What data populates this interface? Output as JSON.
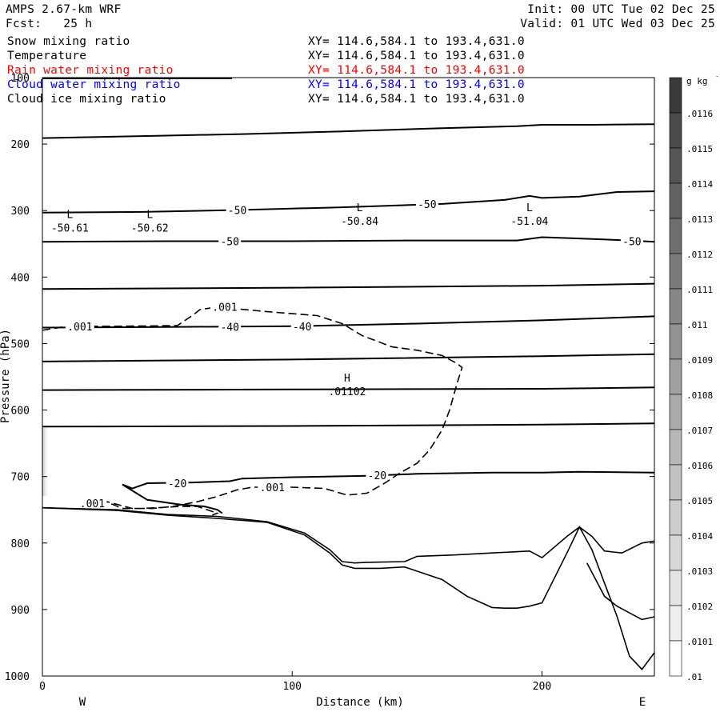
{
  "header": {
    "model": "AMPS 2.67-km WRF",
    "fcst_label": "Fcst:",
    "fcst_value": "25 h",
    "init": "Init: 00 UTC Tue 02 Dec 25",
    "valid": "Valid: 01 UTC Wed 03 Dec 25"
  },
  "fields": [
    {
      "name": "Snow mixing ratio",
      "xy": "XY= 114.6,584.1 to 193.4,631.0",
      "color": "#000000"
    },
    {
      "name": "Temperature",
      "xy": "XY= 114.6,584.1 to 193.4,631.0",
      "color": "#000000"
    },
    {
      "name": "Rain water mixing ratio",
      "xy": "XY= 114.6,584.1 to 193.4,631.0",
      "color": "#ff0000"
    },
    {
      "name": "Cloud water mixing ratio",
      "xy": "XY= 114.6,584.1 to 193.4,631.0",
      "color": "#0000ff"
    },
    {
      "name": "Cloud ice mixing ratio",
      "xy": "XY= 114.6,584.1 to 193.4,631.0",
      "color": "#000000"
    }
  ],
  "chart_data": {
    "type": "line",
    "xlabel": "Distance (km)",
    "ylabel": "Pressure (hPa)",
    "xlim": [
      0,
      245
    ],
    "ylim": [
      1000,
      100
    ],
    "xticks": [
      "0",
      "100",
      "200"
    ],
    "xtick_values": [
      0,
      100,
      200
    ],
    "yticks": [
      "100",
      "200",
      "300",
      "400",
      "500",
      "600",
      "700",
      "800",
      "900",
      "1000"
    ],
    "ytick_values": [
      100,
      200,
      300,
      400,
      500,
      600,
      700,
      800,
      900,
      1000
    ],
    "west_label": "W",
    "east_label": "E",
    "colorbar": {
      "unit": "g kg",
      "unit_exp": "-1",
      "labels": [
        ".0116",
        ".0115",
        ".0114",
        ".0113",
        ".0112",
        ".0111",
        ".011",
        ".0109",
        ".0108",
        ".0107",
        ".0106",
        ".0105",
        ".0104",
        ".0103",
        ".0102",
        ".0101",
        ".01"
      ],
      "colors": [
        "#3a3a3a",
        "#4a4a4a",
        "#555555",
        "#626262",
        "#6e6e6e",
        "#7a7a7a",
        "#878787",
        "#939393",
        "#a0a0a0",
        "#ababab",
        "#b7b7b7",
        "#c2c2c2",
        "#cdcdcd",
        "#d8d8d8",
        "#e3e3e3",
        "#efefef",
        "#ffffff"
      ]
    },
    "isotherms": [
      {
        "x": [
          0,
          40,
          80,
          120,
          160,
          190,
          200,
          220,
          245
        ],
        "y": [
          191,
          188,
          185,
          181,
          176,
          173,
          171,
          171,
          170
        ]
      },
      {
        "x": [
          0,
          40,
          80,
          120,
          160,
          185,
          195,
          200,
          215,
          230,
          245
        ],
        "y": [
          303,
          302,
          299,
          295,
          290,
          284,
          278,
          281,
          279,
          272,
          271
        ]
      },
      {
        "x": [
          0,
          50,
          100,
          150,
          190,
          200,
          215,
          235,
          245
        ],
        "y": [
          347,
          346,
          346,
          345,
          345,
          340,
          342,
          345,
          347
        ]
      },
      {
        "x": [
          0,
          100,
          200,
          245
        ],
        "y": [
          418,
          416,
          413,
          410
        ]
      },
      {
        "x": [
          0,
          50,
          100,
          150,
          200,
          245
        ],
        "y": [
          476,
          475,
          474,
          470,
          465,
          459
        ]
      },
      {
        "x": [
          0,
          100,
          200,
          245
        ],
        "y": [
          527,
          524,
          519,
          516
        ]
      },
      {
        "x": [
          0,
          100,
          200,
          245
        ],
        "y": [
          570,
          569,
          568,
          566
        ]
      },
      {
        "x": [
          0,
          100,
          200,
          245
        ],
        "y": [
          625,
          624,
          622,
          620
        ]
      },
      {
        "x": [
          32,
          36,
          42,
          60,
          75,
          80,
          100,
          130,
          150,
          180,
          200,
          215,
          245
        ],
        "y": [
          712,
          718,
          710,
          709,
          707,
          703,
          701,
          699,
          696,
          694,
          694,
          693,
          694
        ]
      },
      {
        "x": [
          32,
          42,
          55,
          65,
          70,
          72
        ],
        "y": [
          712,
          735,
          742,
          745,
          750,
          755
        ]
      }
    ],
    "snow_contour": {
      "x": [
        0,
        10,
        30,
        54,
        60,
        63,
        70,
        90,
        110,
        120,
        128,
        140,
        150,
        160,
        166,
        168,
        166,
        163,
        160,
        155,
        150,
        143,
        137,
        130,
        122,
        113,
        100,
        84,
        78,
        70,
        62,
        52,
        44,
        40,
        36,
        25,
        32,
        40,
        55,
        62,
        70,
        68
      ],
      "y": [
        480,
        474,
        474,
        473,
        458,
        449,
        445,
        452,
        458,
        470,
        488,
        505,
        510,
        518,
        530,
        536,
        560,
        600,
        630,
        660,
        680,
        695,
        710,
        725,
        728,
        718,
        716,
        716,
        720,
        730,
        738,
        745,
        748,
        748,
        748,
        737,
        748,
        748,
        745,
        745,
        755,
        758
      ]
    },
    "terrain_upper": {
      "x": [
        0,
        30,
        50,
        70,
        90,
        105,
        115,
        120,
        125,
        130,
        145,
        150,
        165,
        180,
        195,
        200,
        210,
        215,
        220,
        225,
        232,
        240,
        245
      ],
      "y": [
        747,
        750,
        757,
        760,
        768,
        785,
        810,
        828,
        830,
        829,
        828,
        820,
        818,
        815,
        812,
        822,
        790,
        776,
        790,
        812,
        815,
        800,
        797
      ]
    },
    "terrain_lower": {
      "x": [
        0,
        30,
        50,
        70,
        90,
        105,
        115,
        120,
        125,
        135,
        145,
        160,
        170,
        180,
        185,
        190,
        195,
        200,
        210,
        215,
        220,
        230,
        235,
        240,
        245
      ],
      "y": [
        747,
        751,
        758,
        763,
        769,
        788,
        815,
        833,
        838,
        838,
        836,
        855,
        880,
        897,
        898,
        898,
        895,
        890,
        815,
        776,
        810,
        910,
        970,
        990,
        965
      ]
    },
    "terrain_branch": {
      "x": [
        218,
        225,
        230,
        240,
        245
      ],
      "y": [
        830,
        880,
        895,
        915,
        911
      ]
    },
    "contour_labels": [
      {
        "text": "-50",
        "x": 78,
        "y": 299
      },
      {
        "text": "-50",
        "x": 154,
        "y": 290
      },
      {
        "text": "-50",
        "x": 75,
        "y": 346
      },
      {
        "text": "-50",
        "x": 236,
        "y": 346
      },
      {
        "text": "-40",
        "x": 75,
        "y": 475
      },
      {
        "text": "-40",
        "x": 104,
        "y": 474
      },
      {
        "text": "-20",
        "x": 54,
        "y": 710
      },
      {
        "text": "-20",
        "x": 134,
        "y": 698
      },
      {
        "text": ".001",
        "x": 15,
        "y": 474
      },
      {
        "text": ".001",
        "x": 73,
        "y": 445
      },
      {
        "text": ".001",
        "x": 92,
        "y": 716
      },
      {
        "text": ".001",
        "x": 20,
        "y": 740
      }
    ],
    "extrema": [
      {
        "mark": "L",
        "value": "-50.61",
        "x": 11,
        "y": 322
      },
      {
        "mark": "L",
        "value": "-50.62",
        "x": 43,
        "y": 322
      },
      {
        "mark": "L",
        "value": "-50.84",
        "x": 127,
        "y": 312
      },
      {
        "mark": "L",
        "value": "-51.04",
        "x": 195,
        "y": 312
      },
      {
        "mark": "H",
        "value": ".01102",
        "x": 122,
        "y": 568
      }
    ]
  }
}
